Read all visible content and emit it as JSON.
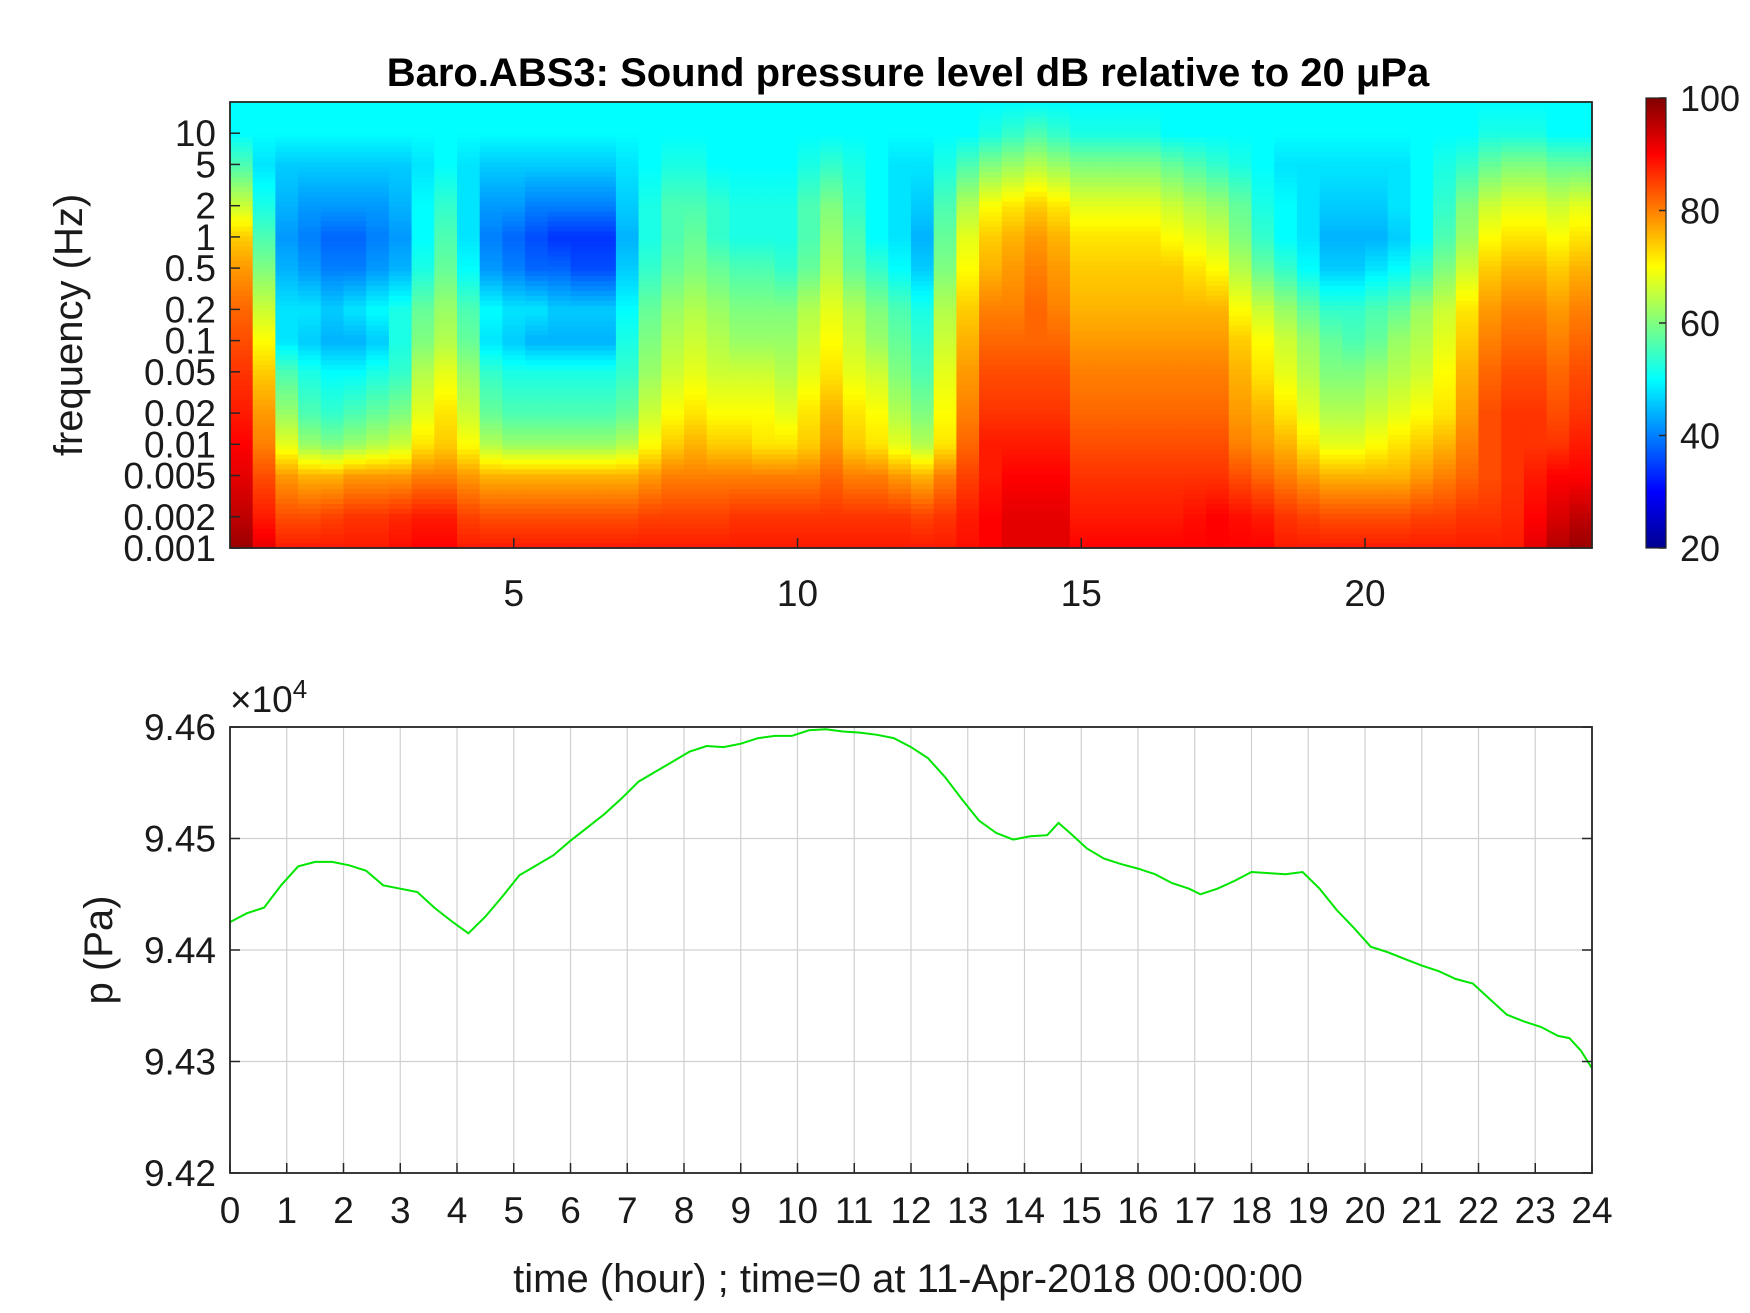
{
  "chart_data": [
    {
      "type": "heatmap",
      "title": "Baro.ABS3: Sound pressure level dB relative to 20 μPa",
      "xlabel": "",
      "ylabel": "frequency (Hz)",
      "xlim": [
        0,
        24
      ],
      "ylim": [
        0.001,
        20
      ],
      "yscale": "log",
      "x_ticks": [
        "5",
        "10",
        "15",
        "20"
      ],
      "x_tick_values": [
        5,
        10,
        15,
        20
      ],
      "y_ticks": [
        "10",
        "5",
        "2",
        "1",
        "0.5",
        "0.2",
        "0.1",
        "0.05",
        "0.02",
        "0.01",
        "0.005",
        "0.002",
        "0.001"
      ],
      "y_tick_values": [
        10,
        5,
        2,
        1,
        0.5,
        0.2,
        0.1,
        0.05,
        0.02,
        0.01,
        0.005,
        0.002,
        0.001
      ],
      "colorbar": {
        "colormap": "jet",
        "range": [
          20,
          100
        ],
        "ticks": [
          "20",
          "40",
          "60",
          "80",
          "100"
        ],
        "tick_values": [
          20,
          40,
          60,
          80,
          100
        ]
      },
      "time_bins_hours": [
        0.2,
        0.6,
        1.0,
        1.4,
        1.8,
        2.2,
        2.6,
        3.0,
        3.4,
        3.8,
        4.2,
        4.6,
        5.0,
        5.4,
        5.8,
        6.2,
        6.6,
        7.0,
        7.4,
        7.8,
        8.2,
        8.6,
        9.0,
        9.4,
        9.8,
        10.2,
        10.6,
        11.0,
        11.4,
        11.8,
        12.2,
        12.6,
        13.0,
        13.4,
        13.8,
        14.2,
        14.6,
        15.0,
        15.4,
        15.8,
        16.2,
        16.6,
        17.0,
        17.4,
        17.8,
        18.2,
        18.6,
        19.0,
        19.4,
        19.8,
        20.2,
        20.6,
        21.0,
        21.4,
        21.8,
        22.2,
        22.6,
        23.0,
        23.4,
        23.8
      ],
      "frequency_bins_hz": [
        0.001,
        0.002,
        0.005,
        0.01,
        0.02,
        0.05,
        0.1,
        0.2,
        0.5,
        1,
        2,
        5,
        10,
        20
      ],
      "band_levels_db": {
        "0.001": [
          98,
          92,
          88,
          88,
          88,
          88,
          88,
          89,
          90,
          90,
          88,
          88,
          88,
          88,
          88,
          88,
          88,
          88,
          88,
          88,
          88,
          88,
          88,
          88,
          88,
          88,
          88,
          88,
          88,
          88,
          88,
          88,
          89,
          90,
          92,
          92,
          92,
          90,
          90,
          90,
          90,
          90,
          90,
          90,
          90,
          90,
          88,
          88,
          88,
          88,
          88,
          88,
          88,
          88,
          88,
          88,
          88,
          92,
          96,
          98
        ],
        "0.002": [
          95,
          88,
          84,
          84,
          85,
          86,
          86,
          87,
          88,
          88,
          85,
          84,
          84,
          84,
          84,
          84,
          84,
          84,
          85,
          85,
          85,
          85,
          86,
          86,
          86,
          86,
          86,
          86,
          86,
          86,
          85,
          86,
          88,
          90,
          92,
          92,
          92,
          88,
          88,
          88,
          88,
          88,
          89,
          90,
          89,
          88,
          86,
          85,
          84,
          84,
          84,
          84,
          85,
          85,
          86,
          86,
          87,
          90,
          93,
          95
        ],
        "0.005": [
          92,
          84,
          78,
          76,
          76,
          78,
          78,
          78,
          80,
          80,
          78,
          76,
          76,
          76,
          76,
          76,
          76,
          76,
          78,
          80,
          80,
          80,
          80,
          80,
          80,
          80,
          82,
          80,
          80,
          78,
          76,
          80,
          85,
          88,
          90,
          90,
          90,
          86,
          86,
          86,
          86,
          86,
          86,
          86,
          84,
          82,
          80,
          78,
          76,
          76,
          76,
          76,
          78,
          80,
          82,
          84,
          86,
          88,
          90,
          90
        ],
        "0.01": [
          90,
          80,
          68,
          62,
          60,
          62,
          64,
          66,
          72,
          74,
          70,
          64,
          62,
          62,
          62,
          62,
          62,
          64,
          70,
          74,
          76,
          74,
          74,
          72,
          72,
          74,
          78,
          74,
          72,
          68,
          64,
          72,
          82,
          88,
          88,
          88,
          88,
          84,
          84,
          84,
          84,
          84,
          84,
          84,
          80,
          78,
          76,
          72,
          68,
          68,
          70,
          72,
          74,
          76,
          80,
          84,
          86,
          86,
          86,
          88
        ],
        "0.02": [
          88,
          78,
          62,
          56,
          54,
          56,
          58,
          60,
          68,
          72,
          66,
          58,
          56,
          56,
          56,
          56,
          56,
          58,
          66,
          70,
          72,
          70,
          70,
          70,
          68,
          72,
          76,
          72,
          70,
          64,
          60,
          70,
          80,
          86,
          86,
          86,
          86,
          82,
          82,
          82,
          82,
          82,
          82,
          82,
          78,
          76,
          72,
          68,
          64,
          64,
          66,
          68,
          70,
          72,
          78,
          84,
          86,
          86,
          84,
          86
        ],
        "0.05": [
          86,
          74,
          56,
          52,
          50,
          50,
          52,
          54,
          64,
          68,
          62,
          54,
          52,
          52,
          52,
          52,
          52,
          54,
          62,
          66,
          68,
          66,
          66,
          66,
          64,
          68,
          72,
          68,
          66,
          60,
          56,
          68,
          78,
          84,
          84,
          84,
          84,
          80,
          80,
          80,
          80,
          80,
          80,
          80,
          76,
          72,
          68,
          64,
          60,
          60,
          62,
          64,
          66,
          70,
          76,
          82,
          84,
          84,
          82,
          84
        ],
        "0.1": [
          84,
          70,
          48,
          46,
          44,
          44,
          46,
          52,
          60,
          64,
          58,
          48,
          46,
          44,
          44,
          44,
          44,
          52,
          60,
          64,
          66,
          64,
          62,
          62,
          62,
          66,
          70,
          66,
          62,
          58,
          54,
          66,
          76,
          82,
          82,
          82,
          82,
          78,
          78,
          78,
          78,
          78,
          78,
          78,
          74,
          70,
          66,
          62,
          58,
          56,
          58,
          62,
          64,
          68,
          74,
          80,
          82,
          82,
          80,
          82
        ],
        "0.2": [
          82,
          66,
          48,
          48,
          46,
          48,
          50,
          52,
          58,
          62,
          56,
          50,
          48,
          48,
          46,
          46,
          46,
          50,
          58,
          62,
          64,
          62,
          60,
          60,
          60,
          64,
          68,
          64,
          60,
          56,
          52,
          64,
          74,
          80,
          80,
          82,
          80,
          76,
          76,
          76,
          76,
          76,
          76,
          76,
          70,
          66,
          62,
          58,
          54,
          54,
          56,
          58,
          62,
          66,
          72,
          78,
          80,
          80,
          78,
          80
        ],
        "0.5": [
          78,
          60,
          44,
          42,
          40,
          40,
          42,
          44,
          52,
          58,
          50,
          42,
          40,
          38,
          38,
          36,
          36,
          46,
          54,
          58,
          60,
          58,
          56,
          56,
          54,
          58,
          64,
          58,
          54,
          50,
          46,
          60,
          70,
          76,
          78,
          80,
          78,
          74,
          74,
          74,
          74,
          74,
          72,
          70,
          64,
          58,
          54,
          50,
          46,
          46,
          48,
          50,
          54,
          60,
          66,
          74,
          76,
          76,
          74,
          76
        ],
        "1": [
          74,
          56,
          42,
          40,
          38,
          38,
          40,
          42,
          50,
          56,
          48,
          40,
          38,
          36,
          34,
          34,
          34,
          44,
          52,
          56,
          58,
          54,
          52,
          52,
          52,
          56,
          62,
          56,
          50,
          48,
          44,
          58,
          68,
          74,
          76,
          78,
          76,
          72,
          72,
          72,
          72,
          70,
          68,
          66,
          60,
          54,
          50,
          48,
          44,
          44,
          44,
          46,
          50,
          56,
          62,
          70,
          72,
          72,
          70,
          72
        ],
        "2": [
          66,
          52,
          44,
          42,
          42,
          42,
          42,
          44,
          50,
          54,
          48,
          42,
          42,
          40,
          40,
          40,
          40,
          46,
          52,
          56,
          56,
          54,
          52,
          52,
          52,
          56,
          60,
          54,
          50,
          48,
          46,
          56,
          64,
          70,
          72,
          74,
          72,
          68,
          68,
          68,
          68,
          66,
          64,
          62,
          58,
          52,
          50,
          48,
          46,
          46,
          46,
          48,
          50,
          54,
          60,
          66,
          68,
          68,
          66,
          68
        ],
        "5": [
          56,
          48,
          46,
          46,
          46,
          46,
          46,
          46,
          48,
          50,
          48,
          46,
          46,
          46,
          46,
          46,
          46,
          48,
          50,
          52,
          52,
          50,
          50,
          50,
          50,
          52,
          54,
          52,
          50,
          48,
          48,
          52,
          56,
          60,
          62,
          64,
          62,
          60,
          60,
          60,
          60,
          58,
          56,
          54,
          52,
          50,
          48,
          48,
          48,
          48,
          48,
          48,
          50,
          52,
          54,
          58,
          60,
          60,
          58,
          58
        ],
        "10": [
          50,
          50,
          50,
          50,
          50,
          50,
          50,
          50,
          50,
          50,
          50,
          50,
          50,
          50,
          50,
          50,
          50,
          50,
          50,
          50,
          50,
          50,
          50,
          50,
          50,
          50,
          50,
          50,
          50,
          50,
          50,
          50,
          50,
          52,
          54,
          56,
          54,
          52,
          52,
          52,
          52,
          50,
          50,
          50,
          50,
          50,
          50,
          50,
          50,
          50,
          50,
          50,
          50,
          50,
          50,
          52,
          52,
          52,
          50,
          50
        ],
        "20": [
          50,
          50,
          50,
          50,
          50,
          50,
          50,
          50,
          50,
          50,
          50,
          50,
          50,
          50,
          50,
          50,
          50,
          50,
          50,
          50,
          50,
          50,
          50,
          50,
          50,
          50,
          50,
          50,
          50,
          50,
          50,
          50,
          50,
          50,
          50,
          50,
          50,
          50,
          50,
          50,
          50,
          50,
          50,
          50,
          50,
          50,
          50,
          50,
          50,
          50,
          50,
          50,
          50,
          50,
          50,
          50,
          50,
          50,
          50,
          50
        ]
      }
    },
    {
      "type": "line",
      "title": "",
      "xlabel": "time (hour) ; time=0 at 11-Apr-2018 00:00:00",
      "ylabel": "p (Pa)",
      "y_exponent_label": "×10",
      "y_exponent": "4",
      "xlim": [
        0,
        24
      ],
      "ylim": [
        9.42,
        9.46
      ],
      "grid": true,
      "x_ticks": [
        "0",
        "1",
        "2",
        "3",
        "4",
        "5",
        "6",
        "7",
        "8",
        "9",
        "10",
        "11",
        "12",
        "13",
        "14",
        "15",
        "16",
        "17",
        "18",
        "19",
        "20",
        "21",
        "22",
        "23",
        "24"
      ],
      "x_tick_values": [
        0,
        1,
        2,
        3,
        4,
        5,
        6,
        7,
        8,
        9,
        10,
        11,
        12,
        13,
        14,
        15,
        16,
        17,
        18,
        19,
        20,
        21,
        22,
        23,
        24
      ],
      "y_ticks": [
        "9.42",
        "9.43",
        "9.44",
        "9.45",
        "9.46"
      ],
      "y_tick_values": [
        9.42,
        9.43,
        9.44,
        9.45,
        9.46
      ],
      "series": [
        {
          "color": "#00e600",
          "x": [
            0,
            0.3,
            0.6,
            0.9,
            1.2,
            1.5,
            1.8,
            2.1,
            2.4,
            2.7,
            3.0,
            3.3,
            3.6,
            3.9,
            4.2,
            4.5,
            4.8,
            5.1,
            5.4,
            5.7,
            6.0,
            6.3,
            6.6,
            6.9,
            7.2,
            7.5,
            7.8,
            8.1,
            8.4,
            8.7,
            9.0,
            9.3,
            9.6,
            9.9,
            10.2,
            10.5,
            10.8,
            11.1,
            11.4,
            11.7,
            12.0,
            12.3,
            12.6,
            12.9,
            13.2,
            13.5,
            13.8,
            14.1,
            14.4,
            14.6,
            14.8,
            15.1,
            15.4,
            15.7,
            16.0,
            16.3,
            16.6,
            16.9,
            17.1,
            17.4,
            17.7,
            18.0,
            18.3,
            18.6,
            18.9,
            19.2,
            19.5,
            19.8,
            20.1,
            20.4,
            20.7,
            21.0,
            21.3,
            21.6,
            21.9,
            22.2,
            22.5,
            22.8,
            23.1,
            23.4,
            23.6,
            23.8,
            24.0
          ],
          "y": [
            9.4425,
            9.4433,
            9.4438,
            9.4458,
            9.4475,
            9.4479,
            9.4479,
            9.4476,
            9.4471,
            9.4458,
            9.4455,
            9.4452,
            9.4438,
            9.4426,
            9.4415,
            9.443,
            9.4448,
            9.4467,
            9.4476,
            9.4485,
            9.4498,
            9.451,
            9.4522,
            9.4536,
            9.4551,
            9.456,
            9.4569,
            9.4578,
            9.4583,
            9.4582,
            9.4585,
            9.459,
            9.4592,
            9.4592,
            9.4597,
            9.4598,
            9.4596,
            9.4595,
            9.4593,
            9.459,
            9.4582,
            9.4572,
            9.4555,
            9.4535,
            9.4516,
            9.4505,
            9.4499,
            9.4502,
            9.4503,
            9.4514,
            9.4505,
            9.4491,
            9.4482,
            9.4477,
            9.4473,
            9.4468,
            9.446,
            9.4455,
            9.445,
            9.4455,
            9.4462,
            9.447,
            9.4469,
            9.4468,
            9.447,
            9.4455,
            9.4436,
            9.442,
            9.4403,
            9.4398,
            9.4392,
            9.4386,
            9.4381,
            9.4374,
            9.437,
            9.4356,
            9.4342,
            9.4336,
            9.4331,
            9.4323,
            9.4321,
            9.431,
            9.4294
          ]
        }
      ]
    }
  ]
}
